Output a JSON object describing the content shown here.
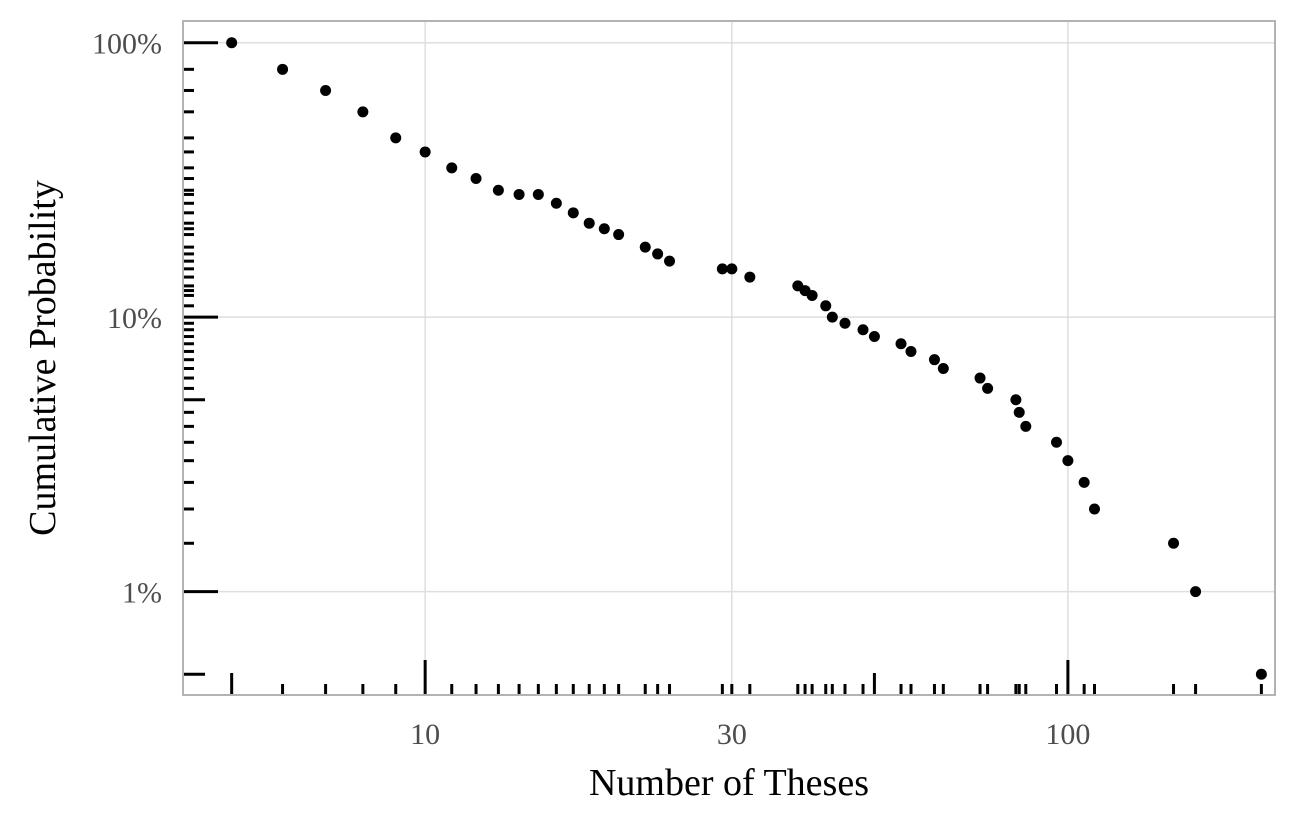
{
  "chart_data": {
    "type": "scatter",
    "xlabel": "Number of Theses",
    "ylabel": "Cumulative Probability",
    "x_scale": "log",
    "y_scale": "log",
    "xlim": [
      4.2,
      210
    ],
    "ylim": [
      0.0042,
      1.2
    ],
    "x_ticks": [
      {
        "value": 10,
        "label": "10"
      },
      {
        "value": 30,
        "label": "30"
      },
      {
        "value": 100,
        "label": "100"
      }
    ],
    "y_ticks": [
      {
        "value": 1.0,
        "label": "100%"
      },
      {
        "value": 0.1,
        "label": "10%"
      },
      {
        "value": 0.01,
        "label": "1%"
      }
    ],
    "grid": true,
    "rug": true,
    "point_color": "#000000",
    "series": [
      {
        "points": [
          [
            5,
            1.0
          ],
          [
            6,
            0.8
          ],
          [
            7,
            0.67
          ],
          [
            8,
            0.56
          ],
          [
            9,
            0.45
          ],
          [
            10,
            0.4
          ],
          [
            11,
            0.35
          ],
          [
            12,
            0.32
          ],
          [
            13,
            0.29
          ],
          [
            14,
            0.28
          ],
          [
            15,
            0.28
          ],
          [
            16,
            0.26
          ],
          [
            17,
            0.24
          ],
          [
            18,
            0.22
          ],
          [
            19,
            0.21
          ],
          [
            20,
            0.2
          ],
          [
            22,
            0.18
          ],
          [
            23,
            0.17
          ],
          [
            24,
            0.16
          ],
          [
            29,
            0.15
          ],
          [
            30,
            0.15
          ],
          [
            32,
            0.14
          ],
          [
            38,
            0.13
          ],
          [
            39,
            0.125
          ],
          [
            40,
            0.12
          ],
          [
            42,
            0.11
          ],
          [
            43,
            0.1
          ],
          [
            45,
            0.095
          ],
          [
            48,
            0.09
          ],
          [
            50,
            0.085
          ],
          [
            55,
            0.08
          ],
          [
            57,
            0.075
          ],
          [
            62,
            0.07
          ],
          [
            64,
            0.065
          ],
          [
            73,
            0.06
          ],
          [
            75,
            0.055
          ],
          [
            83,
            0.05
          ],
          [
            84,
            0.045
          ],
          [
            86,
            0.04
          ],
          [
            96,
            0.035
          ],
          [
            100,
            0.03
          ],
          [
            106,
            0.025
          ],
          [
            110,
            0.02
          ],
          [
            146,
            0.015
          ],
          [
            158,
            0.01
          ],
          [
            200,
            0.005
          ]
        ]
      }
    ]
  }
}
